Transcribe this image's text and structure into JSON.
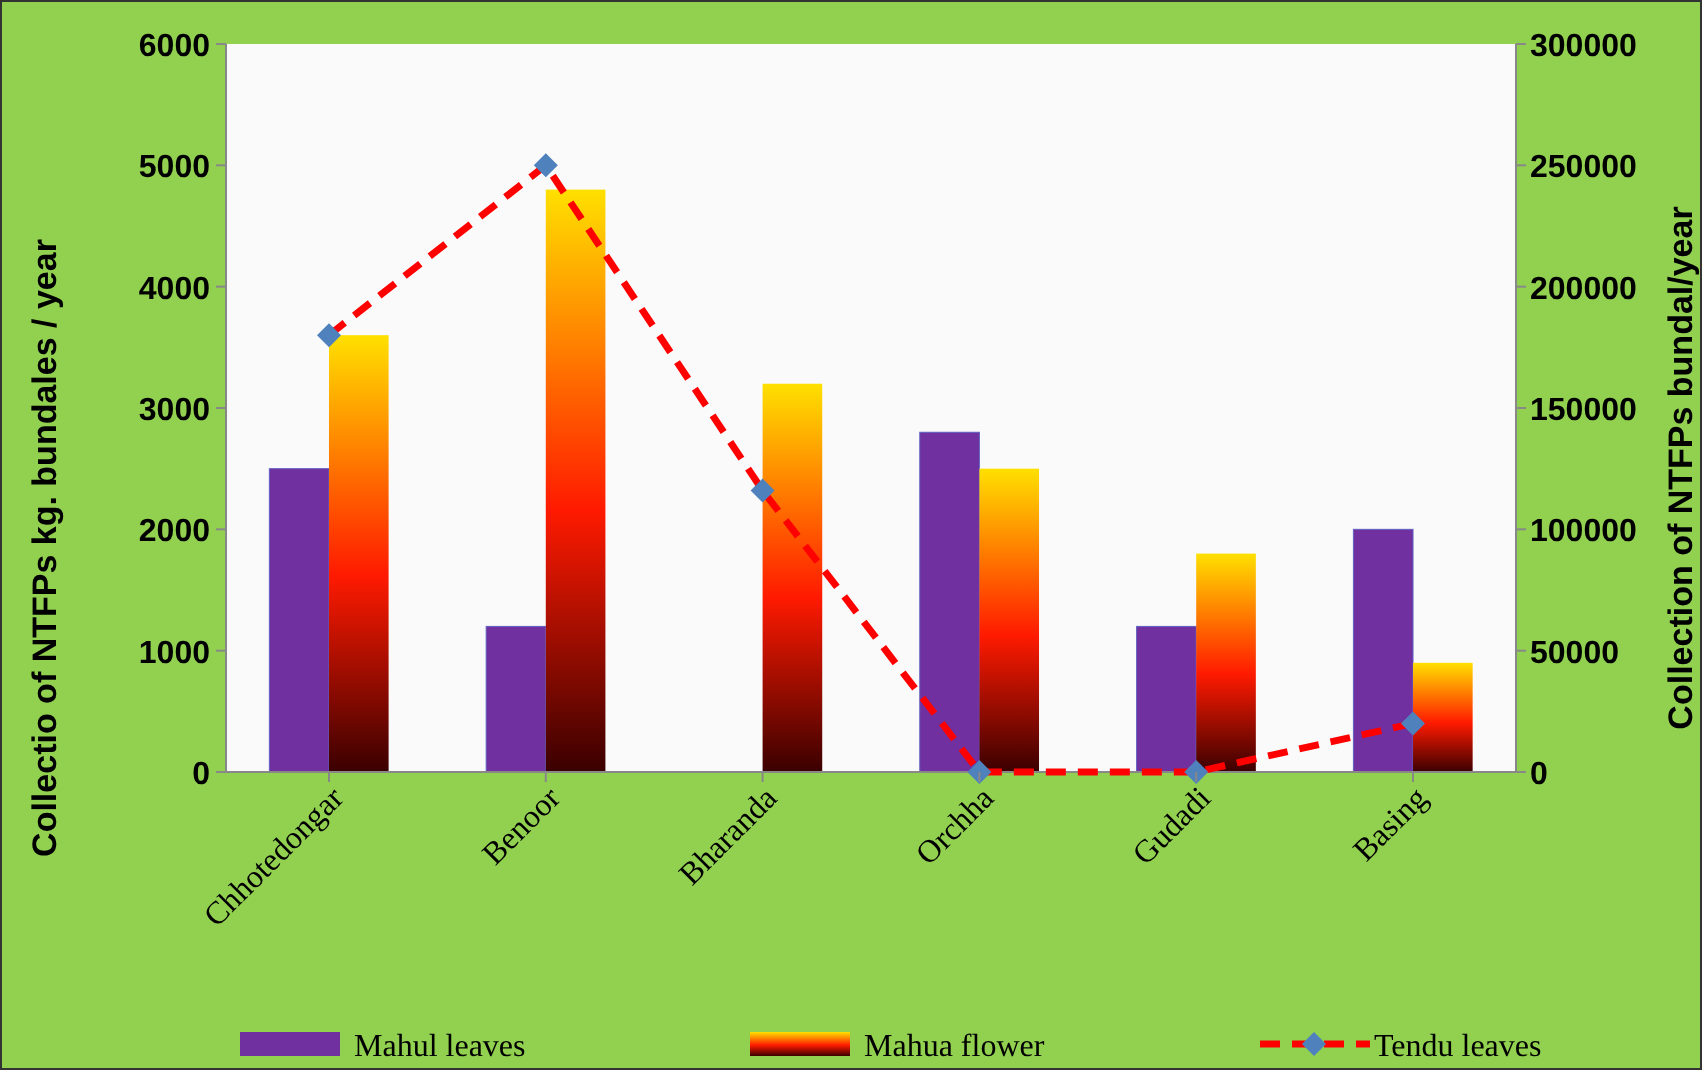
{
  "chart_data": {
    "type": "bar",
    "categories": [
      "Chhotedongar",
      "Benoor",
      "Bharanda",
      "Orchha",
      "Gudadi",
      "Basing"
    ],
    "ylabel": "Collectio  of NTFPs kg. bundales / year",
    "y2label": "Collection  of NTFPs bundal/year",
    "ylim": [
      0,
      6000
    ],
    "yticks": [
      0,
      1000,
      2000,
      3000,
      4000,
      5000,
      6000
    ],
    "y2lim": [
      0,
      300000
    ],
    "y2ticks": [
      0,
      50000,
      100000,
      150000,
      200000,
      250000,
      300000
    ],
    "grid": false,
    "legend": "bottom",
    "series": [
      {
        "name": "Mahul leaves",
        "color": "#7030a0",
        "values": [
          2500,
          1200,
          0,
          2800,
          1200,
          2000
        ]
      },
      {
        "name": "Mahua flower",
        "color": "#ff1a00",
        "values": [
          3600,
          4800,
          3200,
          2500,
          1800,
          900
        ]
      },
      {
        "name": "Tendu leaves",
        "type": "line",
        "axis": "y2",
        "color": "#ff0000",
        "marker": "diamond",
        "line_style": "dashed",
        "values": [
          180000,
          250000,
          116000,
          0,
          0,
          20000
        ]
      }
    ]
  }
}
